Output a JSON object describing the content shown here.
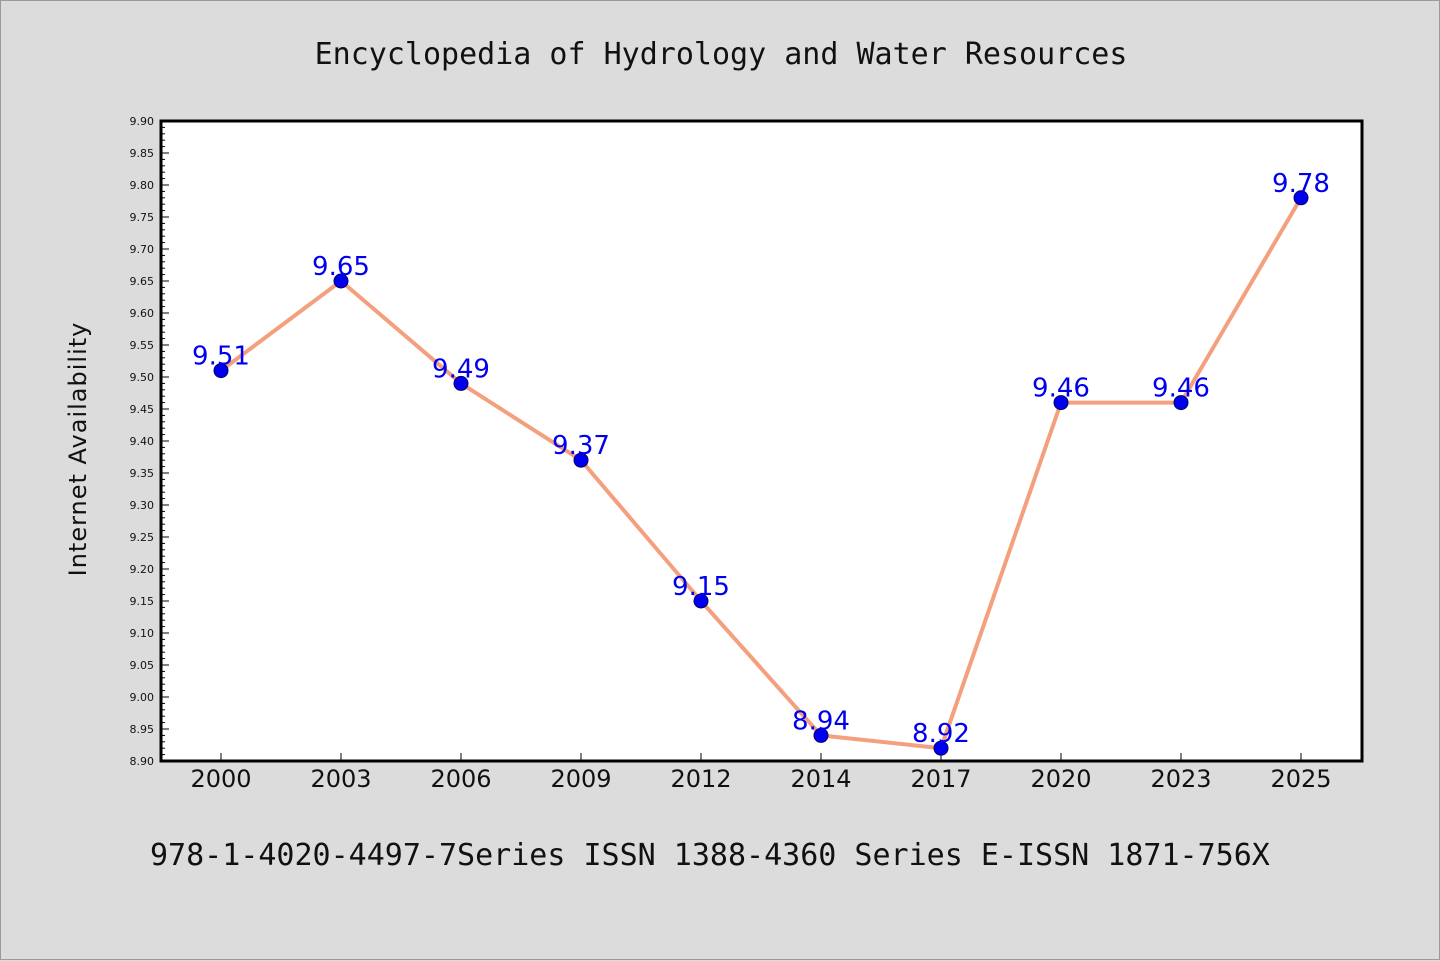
{
  "chart_data": {
    "type": "line",
    "title": "Encyclopedia of Hydrology and Water Resources",
    "xlabel": "",
    "ylabel": "Internet Availability",
    "categories": [
      "2000",
      "2003",
      "2006",
      "2009",
      "2012",
      "2014",
      "2017",
      "2020",
      "2023",
      "2025"
    ],
    "series": [
      {
        "values": [
          9.51,
          9.65,
          9.49,
          9.37,
          9.15,
          8.94,
          8.92,
          9.46,
          9.46,
          9.78
        ],
        "data_labels": [
          "9.51",
          "9.65",
          "9.49",
          "9.37",
          "9.15",
          "8.94",
          "8.92",
          "9.46",
          "9.46",
          "9.78"
        ]
      }
    ],
    "ylim": [
      8.9,
      9.9
    ],
    "yticks": [
      "8.90",
      "8.95",
      "9.00",
      "9.05",
      "9.10",
      "9.15",
      "9.20",
      "9.25",
      "9.30",
      "9.35",
      "9.40",
      "9.45",
      "9.50",
      "9.55",
      "9.60",
      "9.65",
      "9.70",
      "9.75",
      "9.80",
      "9.85",
      "9.90"
    ],
    "grid": false,
    "legend": "none",
    "footer": "978-1-4020-4497-7Series ISSN 1388-4360 Series E-ISSN 1871-756X",
    "colors": {
      "line": "#f4a07e",
      "marker": "#0000ee",
      "marker_edge": "#000066",
      "data_label": "#0000ee",
      "plot_bg": "#ffffff",
      "page_bg": "#dcdcdc"
    }
  }
}
